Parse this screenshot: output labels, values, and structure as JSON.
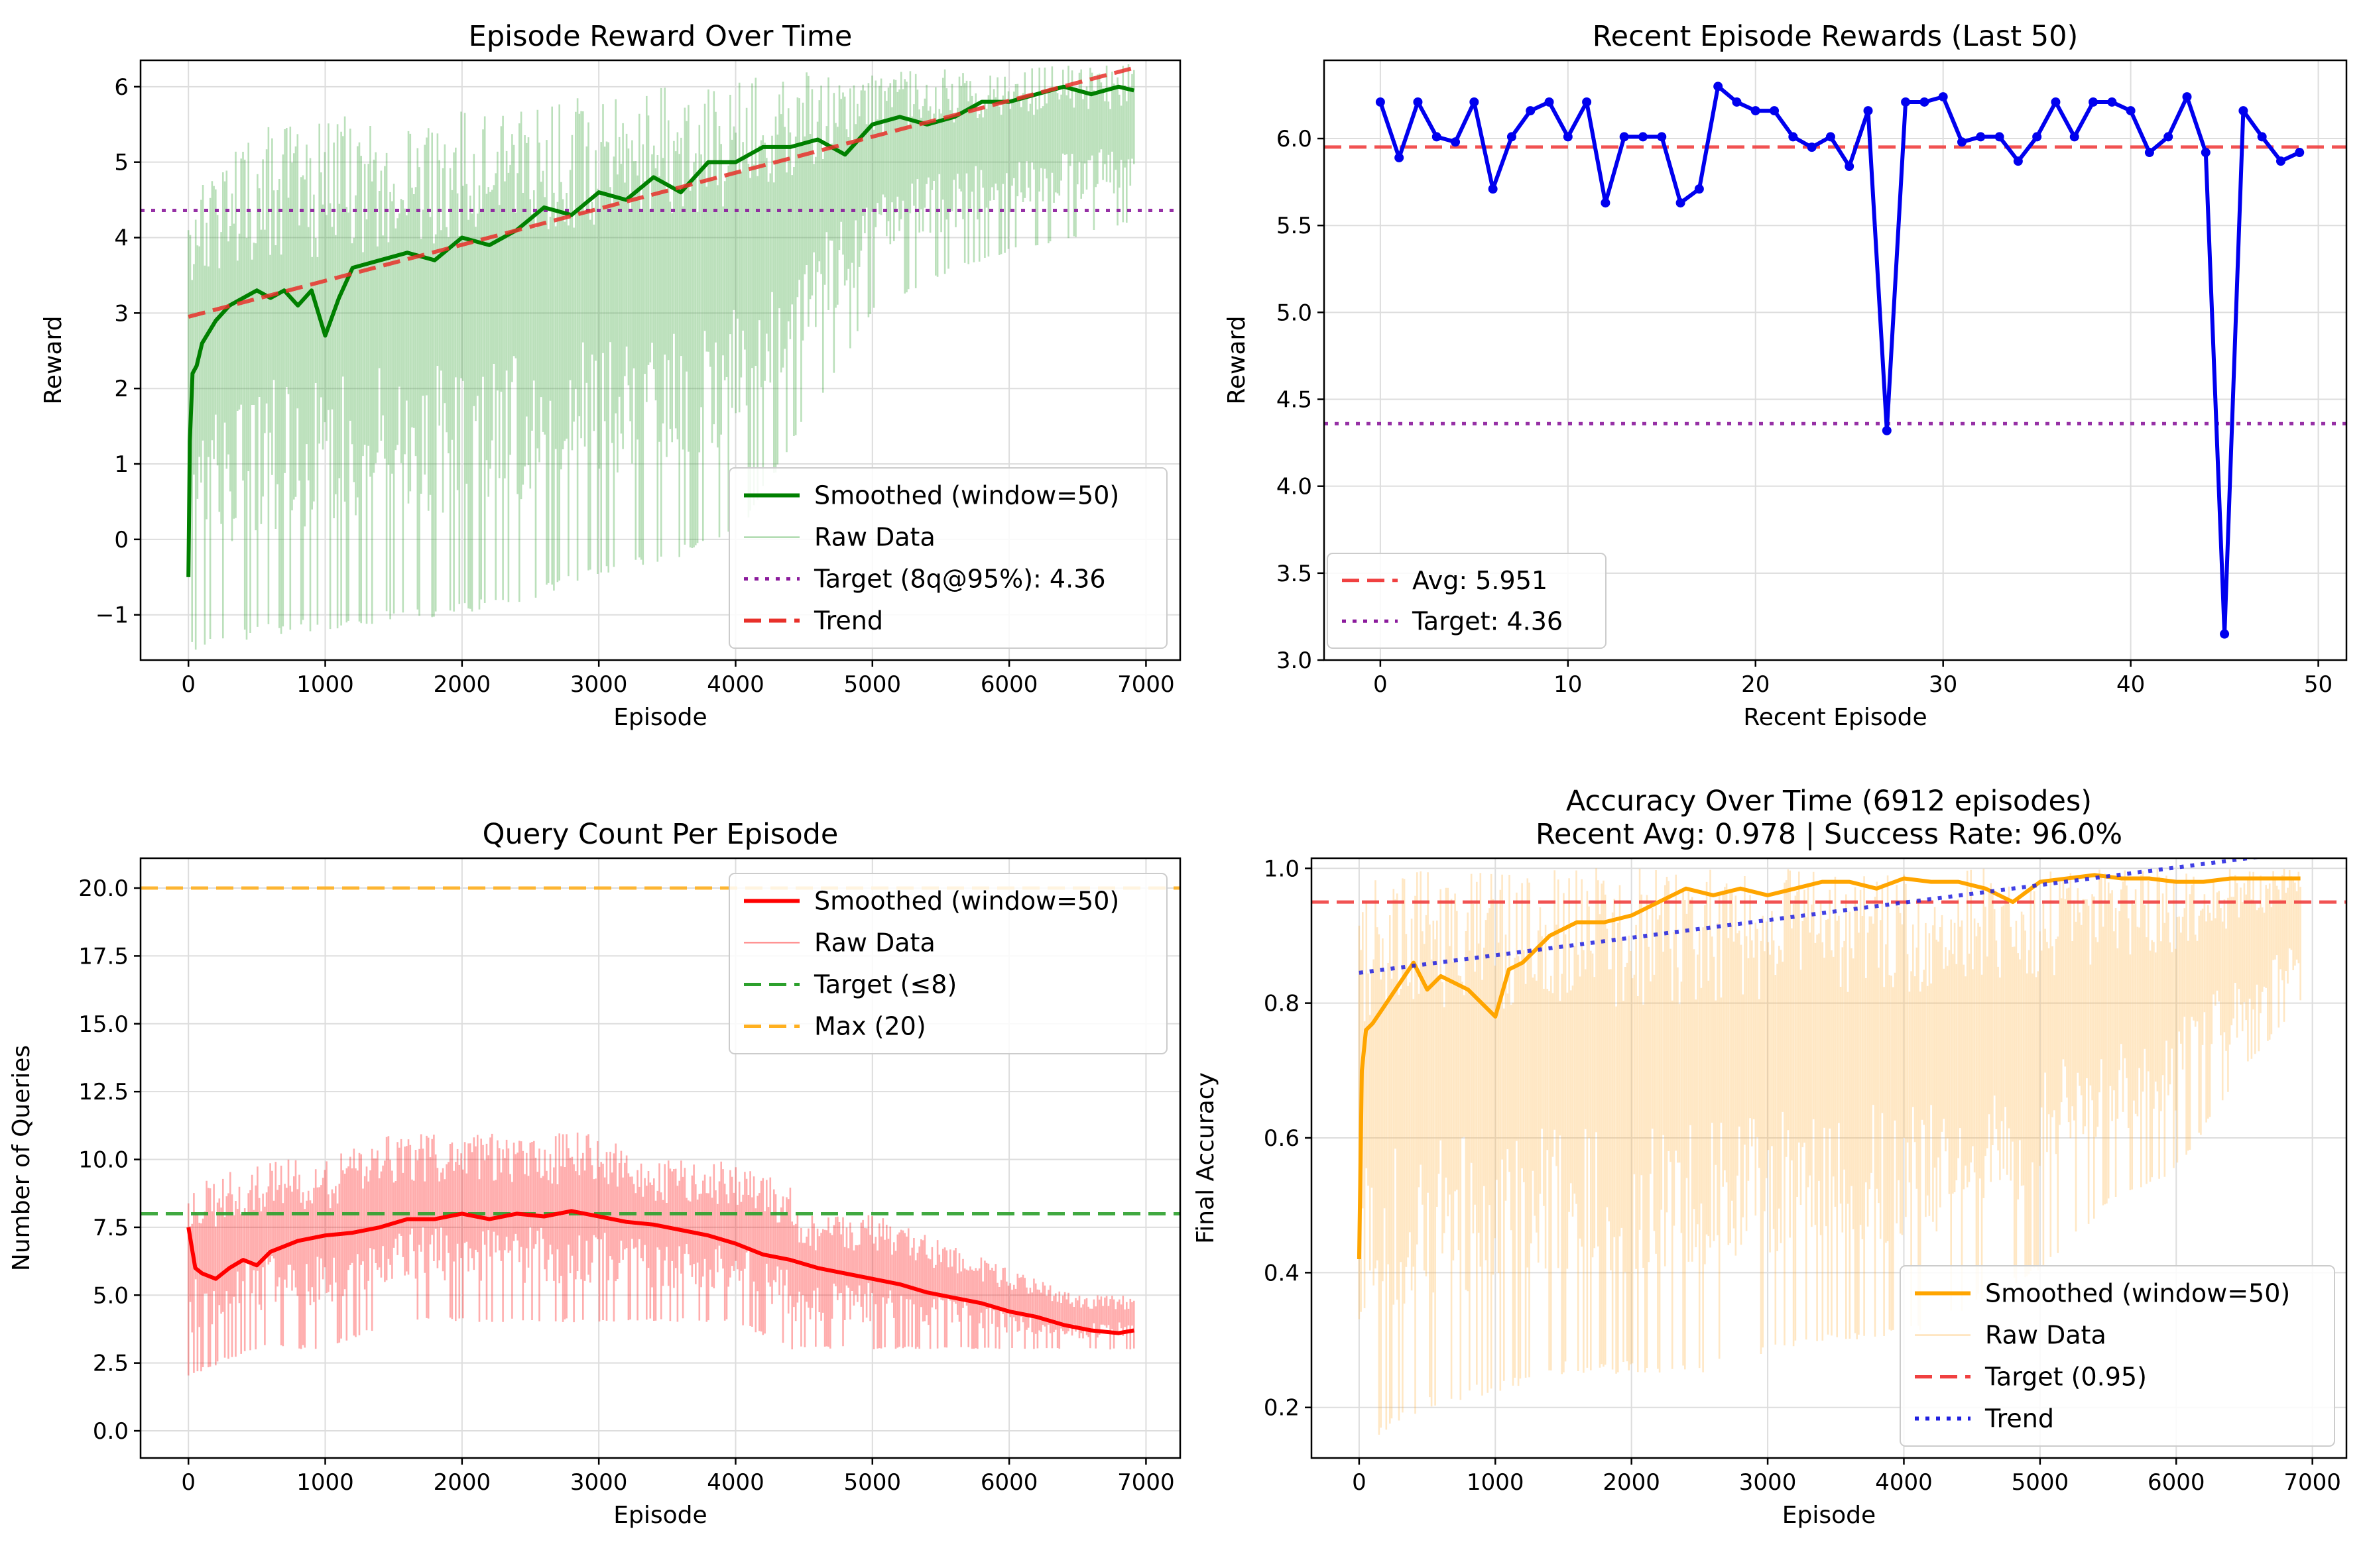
{
  "chart_data": [
    {
      "type": "line",
      "title": "Episode Reward Over Time",
      "xlabel": "Episode",
      "ylabel": "Reward",
      "xlim": [
        -350,
        7250
      ],
      "ylim": [
        -1.6,
        6.35
      ],
      "xticks": [
        0,
        1000,
        2000,
        3000,
        4000,
        5000,
        6000,
        7000
      ],
      "yticks": [
        -1,
        0,
        1,
        2,
        3,
        4,
        5,
        6
      ],
      "ytick_labels": [
        "−1",
        "0",
        "1",
        "2",
        "3",
        "4",
        "5",
        "6"
      ],
      "grid": true,
      "legend_position": "lower-right",
      "raw_band": {
        "name": "Raw Data",
        "color": "#2ca02c",
        "x": [
          0,
          500,
          1000,
          1500,
          2000,
          2500,
          3000,
          3500,
          4000,
          4500,
          5000,
          5500,
          6000,
          6500,
          6912
        ],
        "low": [
          -1.5,
          -1.3,
          -1.2,
          -1.1,
          -1.0,
          -0.8,
          -0.5,
          -0.3,
          0.0,
          1.5,
          3.0,
          3.5,
          3.8,
          4.0,
          4.2
        ],
        "high": [
          4.5,
          5.5,
          5.6,
          5.7,
          5.7,
          5.8,
          5.9,
          6.0,
          6.1,
          6.2,
          6.2,
          6.25,
          6.25,
          6.3,
          6.3
        ]
      },
      "series": [
        {
          "name": "Smoothed (window=50)",
          "color": "#008000",
          "x": [
            0,
            10,
            30,
            60,
            100,
            200,
            300,
            400,
            500,
            600,
            700,
            800,
            900,
            1000,
            1100,
            1200,
            1400,
            1600,
            1800,
            2000,
            2200,
            2400,
            2600,
            2800,
            3000,
            3200,
            3400,
            3600,
            3800,
            4000,
            4200,
            4400,
            4600,
            4800,
            5000,
            5200,
            5400,
            5600,
            5800,
            6000,
            6200,
            6400,
            6600,
            6800,
            6912
          ],
          "y": [
            -0.5,
            1.3,
            2.2,
            2.3,
            2.6,
            2.9,
            3.1,
            3.2,
            3.3,
            3.2,
            3.3,
            3.1,
            3.3,
            2.7,
            3.2,
            3.6,
            3.7,
            3.8,
            3.7,
            4.0,
            3.9,
            4.1,
            4.4,
            4.3,
            4.6,
            4.5,
            4.8,
            4.6,
            5.0,
            5.0,
            5.2,
            5.2,
            5.3,
            5.1,
            5.5,
            5.6,
            5.5,
            5.6,
            5.8,
            5.8,
            5.9,
            6.0,
            5.9,
            6.0,
            5.95
          ]
        },
        {
          "name": "Trend",
          "color": "#e8302a",
          "dash": "dashed",
          "x": [
            0,
            6912
          ],
          "y": [
            2.95,
            6.25
          ]
        }
      ],
      "hlines": [
        {
          "name": "Target (8q@95%): 4.36",
          "value": 4.36,
          "color": "#8b1a9c",
          "dash": "dotted"
        }
      ]
    },
    {
      "type": "line",
      "title": "Recent Episode Rewards (Last 50)",
      "xlabel": "Recent Episode",
      "ylabel": "Reward",
      "xlim": [
        -3,
        51.5
      ],
      "ylim": [
        3.0,
        6.45
      ],
      "xticks": [
        0,
        10,
        20,
        30,
        40,
        50
      ],
      "yticks": [
        3.0,
        3.5,
        4.0,
        4.5,
        5.0,
        5.5,
        6.0
      ],
      "ytick_labels": [
        "3.0",
        "3.5",
        "4.0",
        "4.5",
        "5.0",
        "5.5",
        "6.0"
      ],
      "grid": true,
      "legend_position": "lower-left",
      "series": [
        {
          "name": "",
          "color": "#0000ee",
          "markers": true,
          "x": [
            0,
            1,
            2,
            3,
            4,
            5,
            6,
            7,
            8,
            9,
            10,
            11,
            12,
            13,
            14,
            15,
            16,
            17,
            18,
            19,
            20,
            21,
            22,
            23,
            24,
            25,
            26,
            27,
            28,
            29,
            30,
            31,
            32,
            33,
            34,
            35,
            36,
            37,
            38,
            39,
            40,
            41,
            42,
            43,
            44,
            45,
            46,
            47,
            48,
            49
          ],
          "y": [
            6.21,
            5.89,
            6.21,
            6.01,
            5.98,
            6.21,
            5.71,
            6.01,
            6.16,
            6.21,
            6.01,
            6.21,
            5.63,
            6.01,
            6.01,
            6.01,
            5.63,
            5.71,
            6.3,
            6.21,
            6.16,
            6.16,
            6.01,
            5.95,
            6.01,
            5.84,
            6.16,
            4.32,
            6.21,
            6.21,
            6.24,
            5.98,
            6.01,
            6.01,
            5.87,
            6.01,
            6.21,
            6.01,
            6.21,
            6.21,
            6.16,
            5.92,
            6.01,
            6.24,
            5.92,
            3.15,
            6.16,
            6.01,
            5.87,
            5.92
          ]
        }
      ],
      "hlines": [
        {
          "name": "Avg: 5.951",
          "value": 5.951,
          "color": "#f04040",
          "dash": "dashed"
        },
        {
          "name": "Target: 4.36",
          "value": 4.36,
          "color": "#8b1a9c",
          "dash": "dotted"
        }
      ]
    },
    {
      "type": "line",
      "title": "Query Count Per Episode",
      "xlabel": "Episode",
      "ylabel": "Number of Queries",
      "xlim": [
        -350,
        7250
      ],
      "ylim": [
        -1.0,
        21.1
      ],
      "xticks": [
        0,
        1000,
        2000,
        3000,
        4000,
        5000,
        6000,
        7000
      ],
      "yticks": [
        0.0,
        2.5,
        5.0,
        7.5,
        10.0,
        12.5,
        15.0,
        17.5,
        20.0
      ],
      "ytick_labels": [
        "0.0",
        "2.5",
        "5.0",
        "7.5",
        "10.0",
        "12.5",
        "15.0",
        "17.5",
        "20.0"
      ],
      "grid": true,
      "legend_position": "upper-right",
      "raw_band": {
        "name": "Raw Data",
        "color": "#ff0000",
        "x": [
          0,
          500,
          1000,
          1500,
          2000,
          2500,
          3000,
          3500,
          4000,
          4400,
          4450,
          5000,
          5500,
          6000,
          6500,
          6912
        ],
        "low": [
          2.0,
          3.0,
          3.0,
          4.0,
          4.0,
          4.0,
          4.0,
          4.0,
          4.0,
          3.0,
          3.0,
          3.0,
          3.0,
          3.0,
          3.0,
          3.0
        ],
        "high": [
          9.0,
          10.0,
          10.0,
          11.0,
          11.0,
          11.0,
          11.0,
          10.0,
          10.0,
          9.0,
          8.0,
          8.0,
          7.0,
          6.0,
          5.0,
          5.0
        ]
      },
      "series": [
        {
          "name": "Smoothed (window=50)",
          "color": "#ff0000",
          "x": [
            0,
            50,
            100,
            200,
            300,
            400,
            500,
            600,
            800,
            1000,
            1200,
            1400,
            1600,
            1800,
            2000,
            2200,
            2400,
            2600,
            2800,
            3000,
            3200,
            3400,
            3600,
            3800,
            4000,
            4200,
            4400,
            4600,
            4800,
            5000,
            5200,
            5400,
            5600,
            5800,
            6000,
            6200,
            6400,
            6600,
            6800,
            6912
          ],
          "y": [
            7.5,
            6.0,
            5.8,
            5.6,
            6.0,
            6.3,
            6.1,
            6.6,
            7.0,
            7.2,
            7.3,
            7.5,
            7.8,
            7.8,
            8.0,
            7.8,
            8.0,
            7.9,
            8.1,
            7.9,
            7.7,
            7.6,
            7.4,
            7.2,
            6.9,
            6.5,
            6.3,
            6.0,
            5.8,
            5.6,
            5.4,
            5.1,
            4.9,
            4.7,
            4.4,
            4.2,
            3.9,
            3.7,
            3.6,
            3.7
          ]
        }
      ],
      "hlines": [
        {
          "name": "Target (≤8)",
          "value": 8,
          "color": "#2ca02c",
          "dash": "dashed"
        },
        {
          "name": "Max (20)",
          "value": 20,
          "color": "#ffb020",
          "dash": "dashed"
        }
      ]
    },
    {
      "type": "line",
      "title": "Accuracy Over Time (6912 episodes)",
      "subtitle": "Recent Avg: 0.978 | Success Rate: 96.0%",
      "xlabel": "Episode",
      "ylabel": "Final Accuracy",
      "xlim": [
        -350,
        7250
      ],
      "ylim": [
        0.125,
        1.015
      ],
      "xticks": [
        0,
        1000,
        2000,
        3000,
        4000,
        5000,
        6000,
        7000
      ],
      "yticks": [
        0.2,
        0.4,
        0.6,
        0.8,
        1.0
      ],
      "ytick_labels": [
        "0.2",
        "0.4",
        "0.6",
        "0.8",
        "1.0"
      ],
      "grid": true,
      "legend_position": "lower-right",
      "raw_band": {
        "name": "Raw Data",
        "color": "#ffb347",
        "x": [
          0,
          500,
          1000,
          1500,
          2000,
          2500,
          3000,
          3500,
          4000,
          4500,
          5000,
          5500,
          6000,
          6500,
          6912
        ],
        "low": [
          0.14,
          0.2,
          0.22,
          0.25,
          0.25,
          0.25,
          0.28,
          0.3,
          0.3,
          0.35,
          0.4,
          0.5,
          0.55,
          0.7,
          0.8
        ],
        "high": [
          1.0,
          1.0,
          1.0,
          1.0,
          1.0,
          1.0,
          1.0,
          1.0,
          1.0,
          1.0,
          1.0,
          1.0,
          1.0,
          1.0,
          1.0
        ]
      },
      "series": [
        {
          "name": "Smoothed (window=50)",
          "color": "#ffa500",
          "x": [
            0,
            20,
            50,
            100,
            200,
            300,
            400,
            500,
            600,
            800,
            1000,
            1100,
            1200,
            1400,
            1600,
            1800,
            2000,
            2200,
            2400,
            2600,
            2800,
            3000,
            3200,
            3400,
            3600,
            3800,
            4000,
            4200,
            4400,
            4600,
            4800,
            5000,
            5200,
            5400,
            5600,
            5800,
            6000,
            6200,
            6400,
            6600,
            6800,
            6912
          ],
          "y": [
            0.42,
            0.7,
            0.76,
            0.77,
            0.8,
            0.83,
            0.86,
            0.82,
            0.84,
            0.82,
            0.78,
            0.85,
            0.86,
            0.9,
            0.92,
            0.92,
            0.93,
            0.95,
            0.97,
            0.96,
            0.97,
            0.96,
            0.97,
            0.98,
            0.98,
            0.97,
            0.985,
            0.98,
            0.98,
            0.97,
            0.95,
            0.98,
            0.985,
            0.99,
            0.985,
            0.985,
            0.98,
            0.98,
            0.985,
            0.985,
            0.985,
            0.985
          ]
        },
        {
          "name": "Trend",
          "color": "#2020e0",
          "dash": "dotted",
          "x": [
            0,
            6912
          ],
          "y": [
            0.845,
            1.025
          ]
        }
      ],
      "hlines": [
        {
          "name": "Target (0.95)",
          "value": 0.95,
          "color": "#f04040",
          "dash": "dashed"
        }
      ]
    }
  ]
}
